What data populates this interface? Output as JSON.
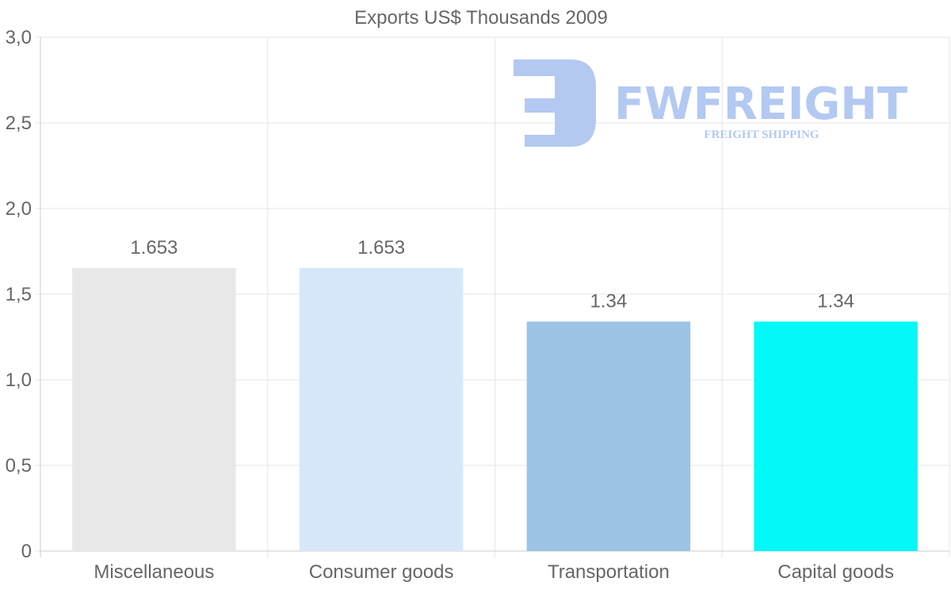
{
  "chart_data": {
    "type": "bar",
    "title": "Exports US$ Thousands 2009",
    "categories": [
      "Miscellaneous",
      "Consumer goods",
      "Transportation",
      "Capital goods"
    ],
    "values": [
      1.653,
      1.653,
      1.34,
      1.34
    ],
    "value_labels": [
      "1.653",
      "1.653",
      "1.34",
      "1.34"
    ],
    "colors": [
      "#e8e8e8",
      "#d6e7fa",
      "#9cc3e6",
      "#03f8f8"
    ],
    "ylim": [
      0,
      3.0
    ],
    "y_ticks": [
      {
        "value": 0,
        "label": "0"
      },
      {
        "value": 0.5,
        "label": "0,5"
      },
      {
        "value": 1.0,
        "label": "1,0"
      },
      {
        "value": 1.5,
        "label": "1,5"
      },
      {
        "value": 2.0,
        "label": "2,0"
      },
      {
        "value": 2.5,
        "label": "2,5"
      },
      {
        "value": 3.0,
        "label": "3,0"
      }
    ],
    "xlabel": "",
    "ylabel": "",
    "grid": true,
    "legend": "none"
  },
  "watermark": {
    "brand": "FWFREIGHT",
    "tagline": "FREIGHT SHIPPING",
    "icon": "fw-logo-icon"
  }
}
